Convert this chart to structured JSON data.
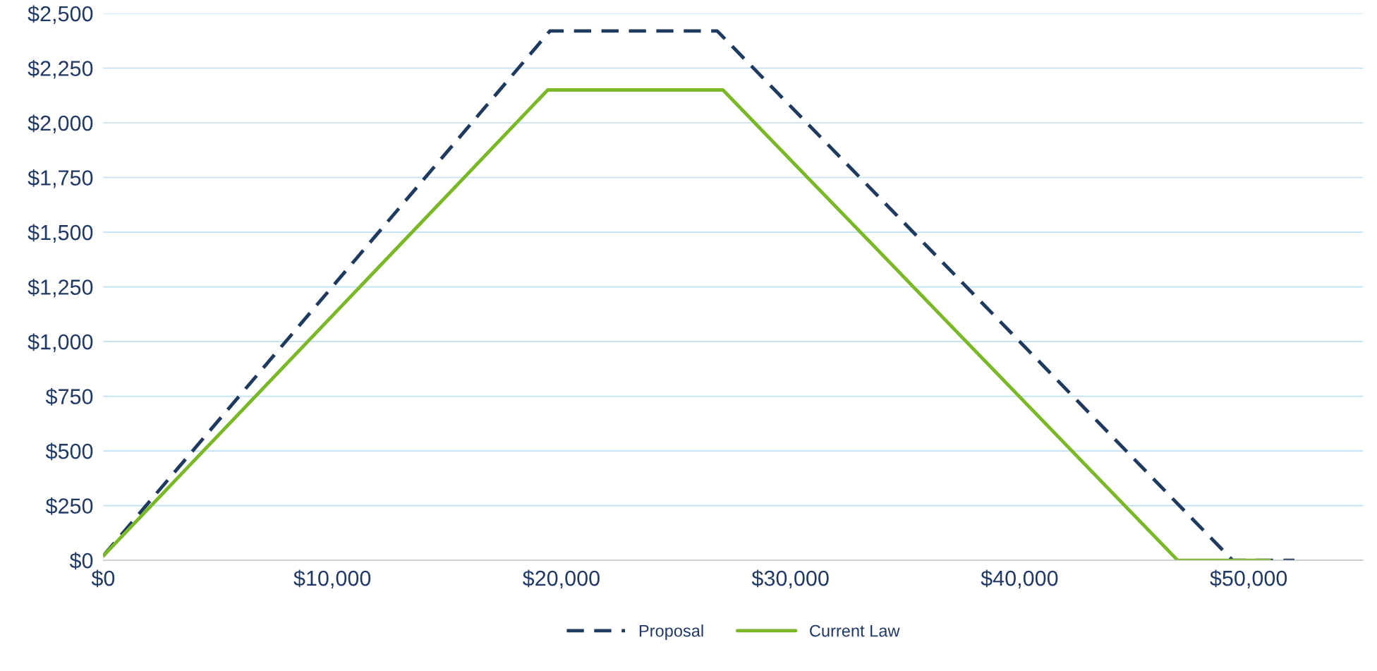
{
  "chart_data": {
    "type": "line",
    "series": [
      {
        "name": "Proposal",
        "color": "#1f3a5f",
        "line_style": "dashed",
        "x": [
          0,
          19500,
          26800,
          49300,
          52000
        ],
        "values": [
          20,
          2420,
          2420,
          0,
          0
        ]
      },
      {
        "name": "Current Law",
        "color": "#7ab828",
        "line_style": "solid",
        "x": [
          0,
          19400,
          27050,
          46900,
          50900
        ],
        "values": [
          20,
          2150,
          2150,
          0,
          0
        ]
      }
    ],
    "xlim": [
      0,
      55000
    ],
    "xticks": [
      {
        "value": 0,
        "label": "$0"
      },
      {
        "value": 10000,
        "label": "$10,000"
      },
      {
        "value": 20000,
        "label": "$20,000"
      },
      {
        "value": 30000,
        "label": "$30,000"
      },
      {
        "value": 40000,
        "label": "$40,000"
      },
      {
        "value": 50000,
        "label": "$50,000"
      }
    ],
    "ylim": [
      0,
      2500
    ],
    "yticks": [
      {
        "value": 0,
        "label": "$0"
      },
      {
        "value": 250,
        "label": "$250"
      },
      {
        "value": 500,
        "label": "$500"
      },
      {
        "value": 750,
        "label": "$750"
      },
      {
        "value": 1000,
        "label": "$1,000"
      },
      {
        "value": 1250,
        "label": "$1,250"
      },
      {
        "value": 1500,
        "label": "$1,500"
      },
      {
        "value": 1750,
        "label": "$1,750"
      },
      {
        "value": 2000,
        "label": "$2,000"
      },
      {
        "value": 2250,
        "label": "$2,250"
      },
      {
        "value": 2500,
        "label": "$2,500"
      }
    ],
    "grid": "y",
    "legend": "bottom",
    "marker": "none"
  }
}
